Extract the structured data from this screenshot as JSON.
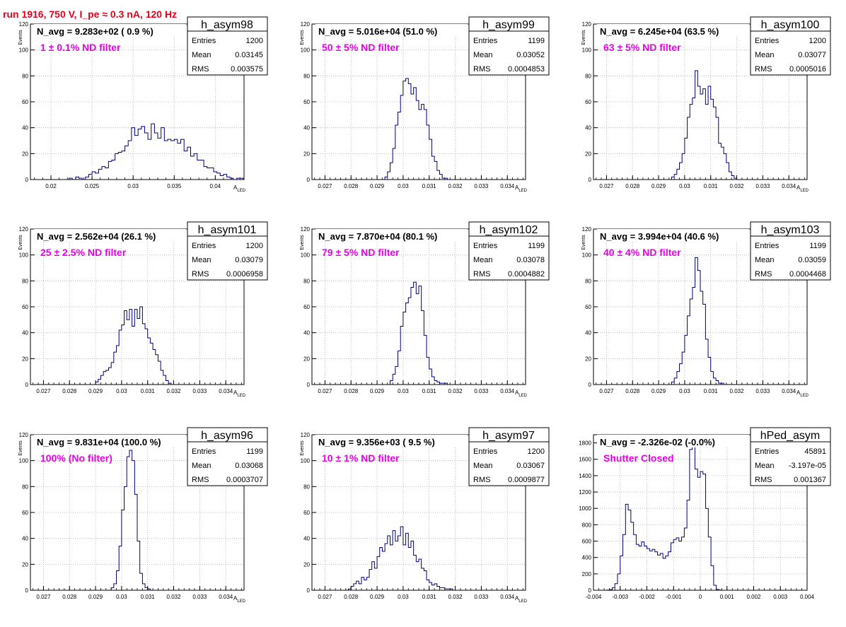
{
  "header": {
    "run_title": "run 1916,   750 V, I_pe ≈ 0.3 nA, 120 Hz"
  },
  "panels": [
    {
      "hist_name": "h_asym98",
      "navg": "N_avg = 9.283e+02 ( 0.9 %)",
      "filter_text": "1 ± 0.1% ND filter",
      "entries_label": "Entries",
      "entries": "1200",
      "mean_label": "Mean",
      "mean": "0.03145",
      "rms_label": "RMS",
      "rms": "0.003575",
      "ylabel": "Events",
      "xlabel": "A",
      "xlabel_sub": "LED"
    },
    {
      "hist_name": "h_asym99",
      "navg": "N_avg = 5.016e+04 (51.0 %)",
      "filter_text": "50 ± 5% ND filter",
      "entries_label": "Entries",
      "entries": "1199",
      "mean_label": "Mean",
      "mean": "0.03052",
      "rms_label": "RMS",
      "rms": "0.0004853",
      "ylabel": "Events",
      "xlabel": "A",
      "xlabel_sub": "LED"
    },
    {
      "hist_name": "h_asym100",
      "navg": "N_avg = 6.245e+04 (63.5 %)",
      "filter_text": "63 ± 5% ND filter",
      "entries_label": "Entries",
      "entries": "1200",
      "mean_label": "Mean",
      "mean": "0.03077",
      "rms_label": "RMS",
      "rms": "0.0005016",
      "ylabel": "Events",
      "xlabel": "A",
      "xlabel_sub": "LED"
    },
    {
      "hist_name": "h_asym101",
      "navg": "N_avg = 2.562e+04 (26.1 %)",
      "filter_text": "25 ± 2.5% ND filter",
      "entries_label": "Entries",
      "entries": "1200",
      "mean_label": "Mean",
      "mean": "0.03079",
      "rms_label": "RMS",
      "rms": "0.0006958",
      "ylabel": "Events",
      "xlabel": "A",
      "xlabel_sub": "LED"
    },
    {
      "hist_name": "h_asym102",
      "navg": "N_avg = 7.870e+04 (80.1 %)",
      "filter_text": "79 ± 5% ND filter",
      "entries_label": "Entries",
      "entries": "1199",
      "mean_label": "Mean",
      "mean": "0.03078",
      "rms_label": "RMS",
      "rms": "0.0004882",
      "ylabel": "Events",
      "xlabel": "A",
      "xlabel_sub": "LED"
    },
    {
      "hist_name": "h_asym103",
      "navg": "N_avg = 3.994e+04 (40.6 %)",
      "filter_text": "40 ± 4% ND filter",
      "entries_label": "Entries",
      "entries": "1199",
      "mean_label": "Mean",
      "mean": "0.03059",
      "rms_label": "RMS",
      "rms": "0.0004468",
      "ylabel": "Events",
      "xlabel": "A",
      "xlabel_sub": "LED"
    },
    {
      "hist_name": "h_asym96",
      "navg": "N_avg = 9.831e+04 (100.0 %)",
      "filter_text": "100% (No filter)",
      "entries_label": "Entries",
      "entries": "1199",
      "mean_label": "Mean",
      "mean": "0.03068",
      "rms_label": "RMS",
      "rms": "0.0003707",
      "ylabel": "Events",
      "xlabel": "A",
      "xlabel_sub": "LED"
    },
    {
      "hist_name": "h_asym97",
      "navg": "N_avg = 9.356e+03 ( 9.5 %)",
      "filter_text": "10 ± 1% ND filter",
      "entries_label": "Entries",
      "entries": "1200",
      "mean_label": "Mean",
      "mean": "0.03067",
      "rms_label": "RMS",
      "rms": "0.0009877",
      "ylabel": "Events",
      "xlabel": "A",
      "xlabel_sub": "LED"
    },
    {
      "hist_name": "hPed_asym",
      "navg": "N_avg = -2.326e-02 (-0.0%)",
      "filter_text": "Shutter Closed",
      "entries_label": "Entries",
      "entries": "45891",
      "mean_label": "Mean",
      "mean": "-3.197e-05",
      "rms_label": "RMS",
      "rms": "0.001367",
      "ylabel": "",
      "xlabel": "",
      "xlabel_sub": ""
    }
  ],
  "colors": {
    "title_red": "#e8001a",
    "filter_magenta": "#e800e8",
    "hist_line": "#00007a",
    "grid": "#b0b0b0"
  },
  "chart_data": [
    {
      "type": "bar",
      "title": "h_asym98",
      "xlim": [
        0.0175,
        0.0435
      ],
      "ylim": [
        0,
        120
      ],
      "grid": true,
      "x_ticks": [
        "0.02",
        "0.025",
        "0.03",
        "0.035",
        "0.04"
      ],
      "x_tick_values": [
        0.02,
        0.025,
        0.03,
        0.035,
        0.04
      ],
      "y_ticks": [
        "0",
        "20",
        "40",
        "60",
        "80",
        "100",
        "120"
      ],
      "bin_start": 0.0222,
      "bin_width": 0.0004,
      "values": [
        1,
        0,
        2,
        1,
        0,
        2,
        4,
        6,
        5,
        8,
        10,
        9,
        14,
        15,
        20,
        21,
        22,
        26,
        30,
        40,
        34,
        39,
        41,
        36,
        31,
        43,
        36,
        32,
        40,
        30,
        31,
        30,
        31,
        28,
        31,
        22,
        25,
        18,
        20,
        15,
        15,
        10,
        9,
        9,
        6,
        5,
        3,
        4,
        2,
        1,
        0,
        1,
        1
      ]
    },
    {
      "type": "bar",
      "title": "h_asym99",
      "xlim": [
        0.0265,
        0.0347
      ],
      "ylim": [
        0,
        120
      ],
      "grid": true,
      "x_ticks": [
        "0.027",
        "0.028",
        "0.029",
        "0.03",
        "0.031",
        "0.032",
        "0.033",
        "0.034"
      ],
      "x_tick_values": [
        0.027,
        0.028,
        0.029,
        0.03,
        0.031,
        0.032,
        0.033,
        0.034
      ],
      "y_ticks": [
        "0",
        "20",
        "40",
        "60",
        "80",
        "100",
        "120"
      ],
      "bin_start": 0.0293,
      "bin_width": 0.0001,
      "values": [
        2,
        6,
        13,
        24,
        42,
        52,
        65,
        76,
        78,
        74,
        66,
        71,
        61,
        54,
        58,
        54,
        42,
        31,
        18,
        14,
        7,
        4,
        1,
        1
      ]
    },
    {
      "type": "bar",
      "title": "h_asym100",
      "xlim": [
        0.0265,
        0.0347
      ],
      "ylim": [
        0,
        120
      ],
      "grid": true,
      "x_ticks": [
        "0.027",
        "0.028",
        "0.029",
        "0.03",
        "0.031",
        "0.032",
        "0.033",
        "0.034"
      ],
      "x_tick_values": [
        0.027,
        0.028,
        0.029,
        0.03,
        0.031,
        0.032,
        0.033,
        0.034
      ],
      "y_ticks": [
        "0",
        "20",
        "40",
        "60",
        "80",
        "100",
        "120"
      ],
      "bin_start": 0.0295,
      "bin_width": 0.0001,
      "values": [
        2,
        4,
        8,
        13,
        20,
        32,
        48,
        58,
        63,
        84,
        72,
        66,
        70,
        58,
        72,
        62,
        56,
        48,
        28,
        25,
        20,
        13,
        6,
        3,
        1
      ]
    },
    {
      "type": "bar",
      "title": "h_asym101",
      "xlim": [
        0.0265,
        0.0347
      ],
      "ylim": [
        0,
        120
      ],
      "grid": true,
      "x_ticks": [
        "0.027",
        "0.028",
        "0.029",
        "0.03",
        "0.031",
        "0.032",
        "0.033",
        "0.034"
      ],
      "x_tick_values": [
        0.027,
        0.028,
        0.029,
        0.03,
        0.031,
        0.032,
        0.033,
        0.034
      ],
      "y_ticks": [
        "0",
        "20",
        "40",
        "60",
        "80",
        "100",
        "120"
      ],
      "bin_start": 0.029,
      "bin_width": 0.0001,
      "values": [
        2,
        4,
        7,
        10,
        11,
        13,
        17,
        25,
        30,
        42,
        46,
        57,
        50,
        58,
        45,
        58,
        51,
        60,
        47,
        43,
        36,
        32,
        27,
        23,
        18,
        11,
        7,
        3,
        1
      ]
    },
    {
      "type": "bar",
      "title": "h_asym102",
      "xlim": [
        0.0265,
        0.0347
      ],
      "ylim": [
        0,
        120
      ],
      "grid": true,
      "x_ticks": [
        "0.027",
        "0.028",
        "0.029",
        "0.03",
        "0.031",
        "0.032",
        "0.033",
        "0.034"
      ],
      "x_tick_values": [
        0.027,
        0.028,
        0.029,
        0.03,
        0.031,
        0.032,
        0.033,
        0.034
      ],
      "y_ticks": [
        "0",
        "20",
        "40",
        "60",
        "80",
        "100",
        "120"
      ],
      "bin_start": 0.0295,
      "bin_width": 0.0001,
      "values": [
        3,
        8,
        14,
        26,
        45,
        56,
        63,
        67,
        75,
        79,
        70,
        76,
        57,
        38,
        21,
        12,
        6,
        3,
        2,
        1,
        1,
        1
      ]
    },
    {
      "type": "bar",
      "title": "h_asym103",
      "xlim": [
        0.0265,
        0.0347
      ],
      "ylim": [
        0,
        120
      ],
      "grid": true,
      "x_ticks": [
        "0.027",
        "0.028",
        "0.029",
        "0.03",
        "0.031",
        "0.032",
        "0.033",
        "0.034"
      ],
      "x_tick_values": [
        0.027,
        0.028,
        0.029,
        0.03,
        0.031,
        0.032,
        0.033,
        0.034
      ],
      "y_ticks": [
        "0",
        "20",
        "40",
        "60",
        "80",
        "100",
        "120"
      ],
      "bin_start": 0.0295,
      "bin_width": 0.0001,
      "values": [
        2,
        5,
        10,
        16,
        25,
        38,
        53,
        66,
        75,
        98,
        88,
        72,
        62,
        35,
        21,
        10,
        5,
        3,
        1,
        1
      ]
    },
    {
      "type": "bar",
      "title": "h_asym96",
      "xlim": [
        0.0265,
        0.0347
      ],
      "ylim": [
        0,
        120
      ],
      "grid": true,
      "x_ticks": [
        "0.027",
        "0.028",
        "0.029",
        "0.03",
        "0.031",
        "0.032",
        "0.033",
        "0.034"
      ],
      "x_tick_values": [
        0.027,
        0.028,
        0.029,
        0.03,
        0.031,
        0.032,
        0.033,
        0.034
      ],
      "y_ticks": [
        "0",
        "20",
        "40",
        "60",
        "80",
        "100",
        "120"
      ],
      "bin_start": 0.0296,
      "bin_width": 0.0001,
      "values": [
        2,
        5,
        15,
        34,
        62,
        80,
        103,
        108,
        100,
        74,
        38,
        13,
        5,
        2,
        1
      ]
    },
    {
      "type": "bar",
      "title": "h_asym97",
      "xlim": [
        0.0265,
        0.0347
      ],
      "ylim": [
        0,
        120
      ],
      "grid": true,
      "x_ticks": [
        "0.027",
        "0.028",
        "0.029",
        "0.03",
        "0.031",
        "0.032",
        "0.033",
        "0.034"
      ],
      "x_tick_values": [
        0.027,
        0.028,
        0.029,
        0.03,
        0.031,
        0.032,
        0.033,
        0.034
      ],
      "y_ticks": [
        "0",
        "20",
        "40",
        "60",
        "80",
        "100",
        "120"
      ],
      "bin_start": 0.0279,
      "bin_width": 0.0001,
      "values": [
        1,
        3,
        5,
        7,
        5,
        10,
        8,
        10,
        16,
        22,
        17,
        26,
        33,
        30,
        36,
        42,
        35,
        46,
        38,
        42,
        49,
        35,
        44,
        33,
        38,
        27,
        22,
        24,
        17,
        15,
        8,
        6,
        4,
        5,
        3,
        2,
        2,
        1,
        1,
        1
      ]
    },
    {
      "type": "bar",
      "title": "hPed_asym",
      "xlim": [
        -0.004,
        0.004
      ],
      "ylim": [
        0,
        1900
      ],
      "grid": true,
      "x_ticks": [
        "-0.004",
        "-0.003",
        "-0.002",
        "-0.001",
        "0",
        "0.001",
        "0.002",
        "0.003",
        "0.004"
      ],
      "x_tick_values": [
        -0.004,
        -0.003,
        -0.002,
        -0.001,
        0,
        0.001,
        0.002,
        0.003,
        0.004
      ],
      "y_ticks": [
        "0",
        "200",
        "400",
        "600",
        "800",
        "1000",
        "1200",
        "1400",
        "1600",
        "1800"
      ],
      "bin_start": -0.0036,
      "bin_width": 0.0001,
      "values": [
        0,
        2,
        8,
        30,
        80,
        200,
        420,
        680,
        1050,
        980,
        830,
        680,
        560,
        540,
        590,
        540,
        510,
        480,
        500,
        470,
        430,
        450,
        390,
        420,
        470,
        580,
        620,
        640,
        600,
        650,
        760,
        1100,
        1720,
        1850,
        1480,
        1380,
        1450,
        1420,
        1000,
        650,
        300,
        60,
        10,
        2
      ]
    }
  ]
}
